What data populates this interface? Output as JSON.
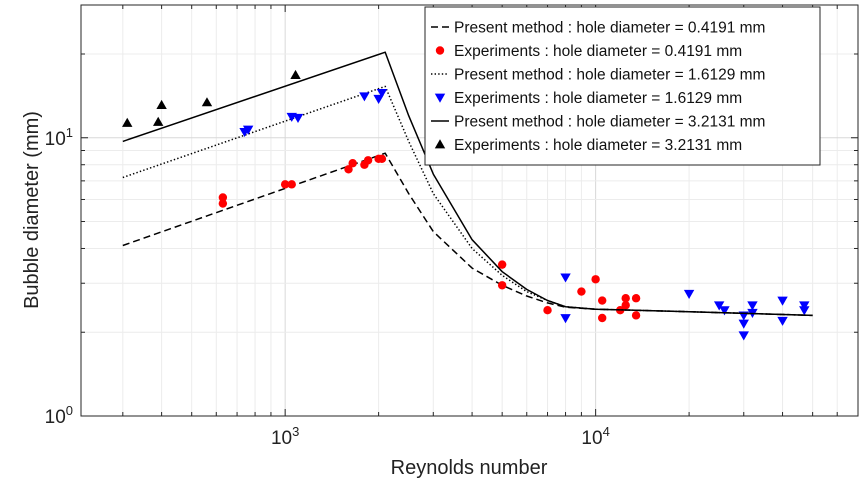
{
  "chart_data": {
    "type": "line",
    "xscale": "log",
    "yscale": "log",
    "xlabel": "Reynolds number",
    "ylabel": "Bubble diameter (mm)",
    "xlim": [
      220,
      70000
    ],
    "ylim": [
      1,
      30
    ],
    "x_ticks": [
      {
        "value": 1000,
        "base": "10",
        "exp": "3"
      },
      {
        "value": 10000,
        "base": "10",
        "exp": "4"
      }
    ],
    "y_ticks": [
      {
        "value": 1,
        "label": "10",
        "exp": "0"
      },
      {
        "value": 10,
        "label": "10",
        "exp": "1"
      }
    ],
    "grid": true,
    "legend_position": "top-right",
    "series": [
      {
        "name": "Present method : hole diameter = 0.4191 mm",
        "kind": "line",
        "style": "dashed",
        "color": "#000000",
        "x": [
          300,
          2100,
          2500,
          3000,
          4000,
          5000,
          6000,
          7000,
          8000,
          10000,
          20000,
          50000
        ],
        "y": [
          4.1,
          8.8,
          6.3,
          4.6,
          3.4,
          2.95,
          2.7,
          2.55,
          2.46,
          2.42,
          2.37,
          2.3
        ]
      },
      {
        "name": "Experiments : hole diameter = 0.4191 mm",
        "kind": "scatter",
        "marker": "circle",
        "color": "#ff0000",
        "x": [
          630,
          630,
          1000,
          1050,
          1600,
          1650,
          1800,
          1850,
          2000,
          2050,
          5000,
          5000,
          7000,
          9000,
          10000,
          10500,
          10500,
          12000,
          12500,
          12500,
          13500,
          13500
        ],
        "y": [
          6.1,
          5.8,
          6.8,
          6.8,
          7.7,
          8.1,
          8.0,
          8.3,
          8.4,
          8.4,
          3.5,
          2.95,
          2.4,
          2.8,
          3.1,
          2.6,
          2.25,
          2.4,
          2.5,
          2.65,
          2.3,
          2.65
        ]
      },
      {
        "name": "Present method : hole diameter = 1.6129 mm",
        "kind": "line",
        "style": "dotted",
        "color": "#000000",
        "x": [
          300,
          2100,
          2500,
          3000,
          4000,
          5000,
          6000,
          7000,
          8000,
          10000,
          20000,
          50000
        ],
        "y": [
          7.2,
          15.3,
          9.7,
          6.3,
          4.0,
          3.2,
          2.8,
          2.6,
          2.47,
          2.42,
          2.37,
          2.3
        ]
      },
      {
        "name": "Experiments : hole diameter = 1.6129 mm",
        "kind": "scatter",
        "marker": "triangle-down",
        "color": "#0000ff",
        "x": [
          740,
          760,
          1050,
          1100,
          1800,
          2000,
          2050,
          8000,
          8000,
          20000,
          25000,
          26000,
          30000,
          30000,
          30000,
          32000,
          32000,
          40000,
          40000,
          47000,
          47000
        ],
        "y": [
          10.5,
          10.7,
          11.9,
          11.8,
          14.1,
          13.8,
          14.5,
          3.15,
          2.25,
          2.75,
          2.5,
          2.4,
          2.15,
          1.95,
          2.3,
          2.5,
          2.35,
          2.6,
          2.2,
          2.5,
          2.4
        ]
      },
      {
        "name": "Present method : hole diameter = 3.2131 mm",
        "kind": "line",
        "style": "solid",
        "color": "#000000",
        "x": [
          300,
          2100,
          2500,
          3000,
          4000,
          5000,
          6000,
          7000,
          8000,
          10000,
          20000,
          50000
        ],
        "y": [
          9.7,
          20.3,
          12.0,
          7.4,
          4.3,
          3.3,
          2.85,
          2.6,
          2.47,
          2.42,
          2.37,
          2.3
        ]
      },
      {
        "name": "Experiments : hole diameter = 3.2131 mm",
        "kind": "scatter",
        "marker": "triangle-up",
        "color": "#000000",
        "x": [
          310,
          390,
          400,
          560,
          1080
        ],
        "y": [
          11.3,
          11.4,
          13.1,
          13.4,
          16.8
        ]
      }
    ]
  }
}
